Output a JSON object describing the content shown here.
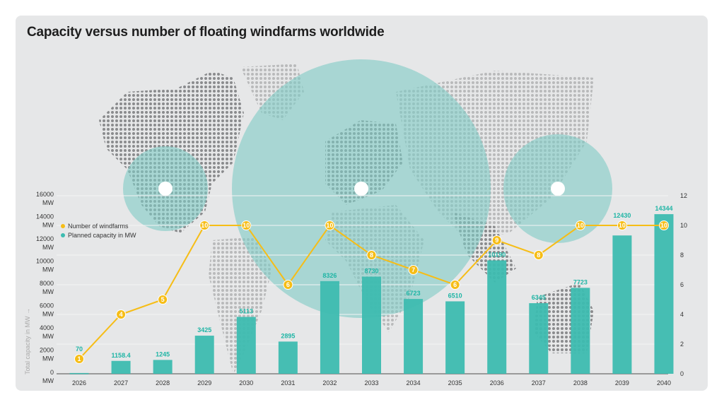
{
  "chart_data": {
    "type": "bar+line",
    "title": "Capacity versus number of floating windfarms worldwide",
    "ylabel": "Total capacity in MW →",
    "categories": [
      "2026",
      "2027",
      "2028",
      "2029",
      "2030",
      "2031",
      "2032",
      "2033",
      "2034",
      "2035",
      "2036",
      "2037",
      "2038",
      "2039",
      "2040"
    ],
    "series": [
      {
        "name": "Planned capacity in MW",
        "type": "bar",
        "axis": "left",
        "color": "#3dbcb0",
        "values": [
          70,
          1158.4,
          1245,
          3425,
          5113,
          2895,
          8326,
          8730,
          6723,
          6510,
          10190,
          6345,
          7723,
          12430,
          14344
        ],
        "labels": [
          "70",
          "1158.4",
          "1245",
          "3425",
          "5113",
          "2895",
          "8326",
          "8730",
          "6723",
          "6510",
          "10190",
          "6345",
          "7723",
          "12430",
          "14344"
        ]
      },
      {
        "name": "Number of windfarms",
        "type": "line",
        "axis": "right",
        "color": "#f6bd16",
        "values": [
          1,
          4,
          5,
          10,
          10,
          6,
          10,
          8,
          7,
          6,
          9,
          8,
          10,
          10,
          10
        ]
      }
    ],
    "left_axis": {
      "ylim": [
        0,
        16000
      ],
      "ticks": [
        "0",
        "2000",
        "4000",
        "6000",
        "8000",
        "10000",
        "12000",
        "14000",
        "16000"
      ],
      "unit": "MW"
    },
    "right_axis": {
      "ylim": [
        0,
        12
      ],
      "ticks": [
        "0",
        "2",
        "4",
        "6",
        "8",
        "10",
        "12"
      ]
    },
    "legend_position": "top-left",
    "grid": true
  }
}
